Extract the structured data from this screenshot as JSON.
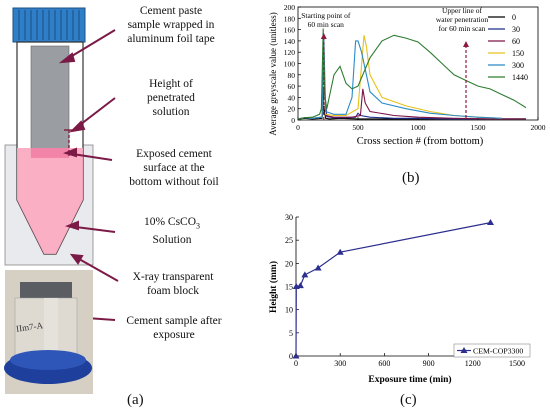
{
  "panel_a": {
    "labels": {
      "foil_wrap": [
        "Cement paste",
        "sample wrapped in",
        "aluminum foil tape"
      ],
      "penetration": [
        "Height of",
        "penetrated",
        "solution"
      ],
      "exposed": [
        "Exposed cement",
        "surface at the",
        "bottom without foil"
      ],
      "solution": [
        "10% CsCO",
        "3",
        " Solution"
      ],
      "foam": [
        "X-ray transparent",
        "foam block"
      ],
      "after": [
        "Cement sample after",
        "exposure"
      ]
    },
    "photo_text": "IIm7-A",
    "letter": "(a)"
  },
  "panel_b": {
    "letter": "(b)",
    "annotations": {
      "start": [
        "Starting point of",
        "60 min scan"
      ],
      "upper": [
        "Upper line of",
        "water penetration",
        "for 60 min scan"
      ]
    },
    "colors": {
      "0": "#000000",
      "30": "#1f2d8a",
      "60": "#7a1445",
      "150": "#e8c21a",
      "300": "#2a8bc8",
      "1440": "#2e7d32"
    }
  },
  "panel_c": {
    "letter": "(c)"
  },
  "chart_data": [
    {
      "type": "line",
      "xlabel": "Cross section # (from bottom)",
      "ylabel": "Average greyscale value (unitless)",
      "xlim": [
        0,
        2000
      ],
      "ylim": [
        0,
        200
      ],
      "xticks": [
        0,
        500,
        1000,
        1500,
        2000
      ],
      "yticks": [
        0,
        20,
        40,
        60,
        80,
        100,
        120,
        140,
        160,
        180,
        200
      ],
      "legend_position": "top-right",
      "series": [
        {
          "name": "0",
          "x": [
            0,
            60,
            120,
            200,
            215,
            230,
            260,
            350,
            500,
            1000,
            1500,
            1900
          ],
          "y": [
            2,
            3,
            2,
            3,
            25,
            3,
            2,
            3,
            2,
            2,
            2,
            2
          ]
        },
        {
          "name": "30",
          "x": [
            0,
            60,
            120,
            200,
            220,
            240,
            300,
            400,
            480,
            500,
            520,
            600,
            800,
            1000,
            1300,
            1600,
            1900
          ],
          "y": [
            2,
            4,
            3,
            5,
            60,
            6,
            4,
            4,
            5,
            12,
            8,
            5,
            3,
            3,
            2,
            2,
            2
          ]
        },
        {
          "name": "60",
          "x": [
            0,
            60,
            120,
            200,
            215,
            230,
            300,
            450,
            520,
            540,
            560,
            600,
            800,
            1000,
            1300,
            1600,
            1900
          ],
          "y": [
            2,
            4,
            3,
            5,
            100,
            8,
            5,
            5,
            8,
            55,
            30,
            15,
            8,
            5,
            3,
            2,
            2
          ]
        },
        {
          "name": "150",
          "x": [
            0,
            60,
            120,
            200,
            215,
            230,
            300,
            400,
            500,
            550,
            570,
            600,
            700,
            900,
            1100,
            1300,
            1500,
            1700
          ],
          "y": [
            2,
            4,
            3,
            5,
            140,
            10,
            8,
            8,
            20,
            150,
            130,
            80,
            40,
            25,
            15,
            8,
            5,
            3
          ]
        },
        {
          "name": "300",
          "x": [
            0,
            60,
            120,
            200,
            215,
            230,
            300,
            400,
            450,
            480,
            500,
            530,
            600,
            700,
            900,
            1100,
            1300,
            1500,
            1700
          ],
          "y": [
            2,
            4,
            3,
            5,
            150,
            15,
            10,
            10,
            40,
            140,
            140,
            120,
            50,
            30,
            20,
            12,
            8,
            5,
            3
          ]
        },
        {
          "name": "1440",
          "x": [
            0,
            60,
            120,
            180,
            195,
            210,
            225,
            240,
            300,
            350,
            400,
            450,
            500,
            600,
            700,
            800,
            900,
            1000,
            1100,
            1200,
            1300,
            1400,
            1500,
            1600,
            1700,
            1800,
            1900
          ],
          "y": [
            2,
            4,
            5,
            10,
            20,
            162,
            40,
            20,
            80,
            95,
            65,
            55,
            60,
            110,
            140,
            150,
            145,
            138,
            120,
            100,
            80,
            70,
            60,
            55,
            45,
            35,
            22
          ]
        }
      ]
    },
    {
      "type": "line",
      "xlabel": "Exposure time (min)",
      "ylabel": "Height (mm)",
      "xlim": [
        0,
        1500
      ],
      "ylim": [
        0,
        30
      ],
      "xticks": [
        0,
        300,
        600,
        900,
        1200,
        1500
      ],
      "yticks": [
        0,
        5,
        10,
        15,
        20,
        25,
        30
      ],
      "legend_position": "bottom-right",
      "series": [
        {
          "name": "CEM-COP3300",
          "x": [
            0,
            2,
            30,
            60,
            150,
            300,
            1320
          ],
          "y": [
            0,
            15,
            15.2,
            17.5,
            19,
            22.4,
            28.8
          ]
        }
      ]
    }
  ]
}
